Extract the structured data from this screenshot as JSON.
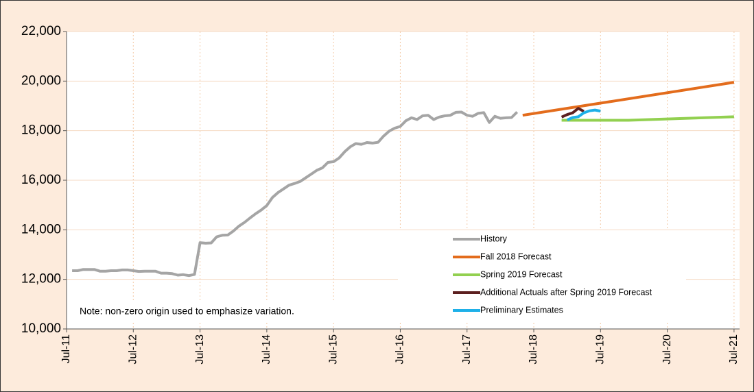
{
  "chart_data": {
    "type": "line",
    "note": "Note: non-zero origin used to emphasize variation.",
    "xlim": [
      "2011-07",
      "2021-08"
    ],
    "xticks": [
      {
        "value": "2011-07",
        "label": "Jul-11"
      },
      {
        "value": "2012-07",
        "label": "Jul-12"
      },
      {
        "value": "2013-07",
        "label": "Jul-13"
      },
      {
        "value": "2014-07",
        "label": "Jul-14"
      },
      {
        "value": "2015-07",
        "label": "Jul-15"
      },
      {
        "value": "2016-07",
        "label": "Jul-16"
      },
      {
        "value": "2017-07",
        "label": "Jul-17"
      },
      {
        "value": "2018-07",
        "label": "Jul-18"
      },
      {
        "value": "2019-07",
        "label": "Jul-19"
      },
      {
        "value": "2020-07",
        "label": "Jul-20"
      },
      {
        "value": "2021-07",
        "label": "Jul-21"
      }
    ],
    "ylim": [
      10000,
      22000
    ],
    "yticks": [
      {
        "value": 10000,
        "label": "10,000"
      },
      {
        "value": 12000,
        "label": "12,000"
      },
      {
        "value": 14000,
        "label": "14,000"
      },
      {
        "value": 16000,
        "label": "16,000"
      },
      {
        "value": 18000,
        "label": "18,000"
      },
      {
        "value": 20000,
        "label": "20,000"
      },
      {
        "value": 22000,
        "label": "22,000"
      }
    ],
    "grid": true,
    "legend": "bottom-right",
    "series": [
      {
        "name": "History",
        "color": "#a5a5a5",
        "x": [
          "2011-08",
          "2011-09",
          "2011-10",
          "2011-11",
          "2011-12",
          "2012-01",
          "2012-02",
          "2012-03",
          "2012-04",
          "2012-05",
          "2012-06",
          "2012-07",
          "2012-08",
          "2012-09",
          "2012-10",
          "2012-11",
          "2012-12",
          "2013-01",
          "2013-02",
          "2013-03",
          "2013-04",
          "2013-05",
          "2013-06",
          "2013-07",
          "2013-08",
          "2013-09",
          "2013-10",
          "2013-11",
          "2013-12",
          "2014-01",
          "2014-02",
          "2014-03",
          "2014-04",
          "2014-05",
          "2014-06",
          "2014-07",
          "2014-08",
          "2014-09",
          "2014-10",
          "2014-11",
          "2014-12",
          "2015-01",
          "2015-02",
          "2015-03",
          "2015-04",
          "2015-05",
          "2015-06",
          "2015-07",
          "2015-08",
          "2015-09",
          "2015-10",
          "2015-11",
          "2015-12",
          "2016-01",
          "2016-02",
          "2016-03",
          "2016-04",
          "2016-05",
          "2016-06",
          "2016-07",
          "2016-08",
          "2016-09",
          "2016-10",
          "2016-11",
          "2016-12",
          "2017-01",
          "2017-02",
          "2017-03",
          "2017-04",
          "2017-05",
          "2017-06",
          "2017-07",
          "2017-08",
          "2017-09",
          "2017-10",
          "2017-11",
          "2017-12",
          "2018-01",
          "2018-02",
          "2018-03",
          "2018-04"
        ],
        "values": [
          12350,
          12350,
          12400,
          12400,
          12400,
          12330,
          12330,
          12350,
          12350,
          12380,
          12380,
          12350,
          12320,
          12330,
          12330,
          12330,
          12250,
          12250,
          12230,
          12170,
          12190,
          12150,
          12200,
          13480,
          13460,
          13470,
          13720,
          13780,
          13790,
          13950,
          14150,
          14300,
          14480,
          14650,
          14800,
          14980,
          15300,
          15500,
          15650,
          15800,
          15870,
          15950,
          16100,
          16250,
          16400,
          16500,
          16720,
          16750,
          16900,
          17150,
          17350,
          17480,
          17450,
          17520,
          17500,
          17530,
          17780,
          17980,
          18100,
          18170,
          18400,
          18520,
          18450,
          18600,
          18620,
          18450,
          18550,
          18600,
          18620,
          18740,
          18750,
          18620,
          18580,
          18700,
          18730,
          18330,
          18580,
          18500,
          18520,
          18530,
          18750
        ]
      },
      {
        "name": "Fall 2018 Forecast",
        "color": "#e36c1c",
        "x": [
          "2018-05",
          "2021-07"
        ],
        "values": [
          18620,
          19950
        ]
      },
      {
        "name": "Spring 2019 Forecast",
        "color": "#92d050",
        "x": [
          "2018-12",
          "2019-12",
          "2021-07"
        ],
        "values": [
          18420,
          18420,
          18560
        ]
      },
      {
        "name": "Additional Actuals after Spring 2019 Forecast",
        "color": "#5c1f1f",
        "x": [
          "2018-12",
          "2019-01",
          "2019-02",
          "2019-03",
          "2019-04"
        ],
        "values": [
          18550,
          18650,
          18720,
          18900,
          18780
        ]
      },
      {
        "name": "Preliminary Estimates",
        "color": "#1eb0e8",
        "x": [
          "2019-01",
          "2019-02",
          "2019-03",
          "2019-04",
          "2019-05",
          "2019-06",
          "2019-07"
        ],
        "values": [
          18430,
          18530,
          18560,
          18720,
          18800,
          18830,
          18790
        ]
      }
    ]
  }
}
